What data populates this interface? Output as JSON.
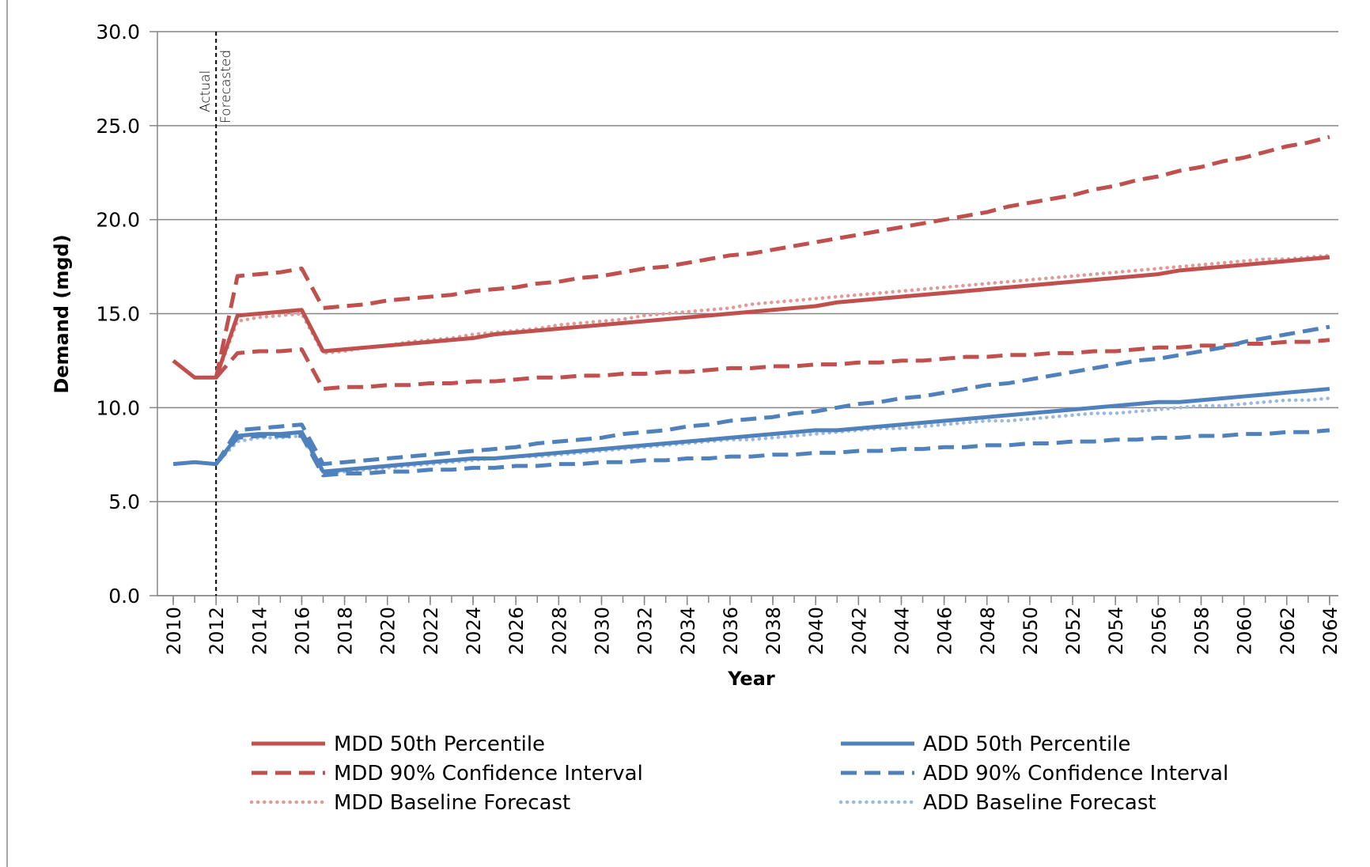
{
  "chart_data": {
    "type": "line",
    "xlabel": "Year",
    "ylabel": "Demand (mgd)",
    "x": [
      2010,
      2011,
      2012,
      2013,
      2014,
      2015,
      2016,
      2017,
      2018,
      2019,
      2020,
      2021,
      2022,
      2023,
      2024,
      2025,
      2026,
      2027,
      2028,
      2029,
      2030,
      2031,
      2032,
      2033,
      2034,
      2035,
      2036,
      2037,
      2038,
      2039,
      2040,
      2041,
      2042,
      2043,
      2044,
      2045,
      2046,
      2047,
      2048,
      2049,
      2050,
      2051,
      2052,
      2053,
      2054,
      2055,
      2056,
      2057,
      2058,
      2059,
      2060,
      2061,
      2062,
      2063,
      2064
    ],
    "xlim": [
      2009.26,
      2064.41
    ],
    "xticks": [
      2010,
      2012,
      2014,
      2016,
      2018,
      2020,
      2022,
      2024,
      2026,
      2028,
      2030,
      2032,
      2034,
      2036,
      2038,
      2040,
      2042,
      2044,
      2046,
      2048,
      2050,
      2052,
      2054,
      2056,
      2058,
      2060,
      2062,
      2064
    ],
    "ylim": [
      0,
      30
    ],
    "yticks": [
      {
        "value": 0,
        "label": "0.0"
      },
      {
        "value": 5,
        "label": "5.0"
      },
      {
        "value": 10,
        "label": "10.0"
      },
      {
        "value": 15,
        "label": "15.0"
      },
      {
        "value": 20,
        "label": "20.0"
      },
      {
        "value": 25,
        "label": "25.0"
      },
      {
        "value": 30,
        "label": "30.0"
      }
    ],
    "grid": true,
    "legend": "bottom",
    "divider": {
      "x": 2012,
      "left_label": "Actual",
      "right_label": "Forecasted"
    },
    "series": [
      {
        "name": "MDD 50th Percentile",
        "color": "#c0504d",
        "style": "solid",
        "values": [
          12.5,
          11.6,
          11.6,
          14.9,
          15.0,
          15.1,
          15.2,
          13.0,
          13.1,
          13.2,
          13.3,
          13.4,
          13.5,
          13.6,
          13.7,
          13.9,
          14.0,
          14.1,
          14.2,
          14.3,
          14.4,
          14.5,
          14.6,
          14.7,
          14.8,
          14.9,
          15.0,
          15.1,
          15.2,
          15.3,
          15.4,
          15.6,
          15.7,
          15.8,
          15.9,
          16.0,
          16.1,
          16.2,
          16.3,
          16.4,
          16.5,
          16.6,
          16.7,
          16.8,
          16.9,
          17.0,
          17.1,
          17.3,
          17.4,
          17.5,
          17.6,
          17.7,
          17.8,
          17.9,
          18.0
        ]
      },
      {
        "name": "MDD 90% Confidence Interval",
        "color": "#c0504d",
        "style": "dash",
        "values": [
          null,
          null,
          11.6,
          17.0,
          17.1,
          17.2,
          17.4,
          15.3,
          15.4,
          15.5,
          15.7,
          15.8,
          15.9,
          16.0,
          16.2,
          16.3,
          16.4,
          16.6,
          16.7,
          16.9,
          17.0,
          17.2,
          17.4,
          17.5,
          17.7,
          17.9,
          18.1,
          18.2,
          18.4,
          18.6,
          18.8,
          19.0,
          19.2,
          19.4,
          19.6,
          19.8,
          20.0,
          20.2,
          20.4,
          20.7,
          20.9,
          21.1,
          21.3,
          21.6,
          21.8,
          22.1,
          22.3,
          22.6,
          22.8,
          23.1,
          23.3,
          23.6,
          23.9,
          24.1,
          24.4
        ],
        "lower": [
          null,
          null,
          11.6,
          12.9,
          13.0,
          13.0,
          13.1,
          11.0,
          11.1,
          11.1,
          11.2,
          11.2,
          11.3,
          11.3,
          11.4,
          11.4,
          11.5,
          11.6,
          11.6,
          11.7,
          11.7,
          11.8,
          11.8,
          11.9,
          11.9,
          12.0,
          12.1,
          12.1,
          12.2,
          12.2,
          12.3,
          12.3,
          12.4,
          12.4,
          12.5,
          12.5,
          12.6,
          12.7,
          12.7,
          12.8,
          12.8,
          12.9,
          12.9,
          13.0,
          13.0,
          13.1,
          13.2,
          13.2,
          13.3,
          13.3,
          13.4,
          13.4,
          13.5,
          13.5,
          13.6
        ]
      },
      {
        "name": "MDD Baseline Forecast",
        "color": "#e09a98",
        "style": "dot",
        "values": [
          null,
          null,
          11.6,
          14.6,
          14.8,
          14.9,
          15.0,
          12.9,
          13.0,
          13.2,
          13.3,
          13.5,
          13.6,
          13.7,
          13.9,
          14.0,
          14.1,
          14.2,
          14.4,
          14.5,
          14.6,
          14.7,
          14.9,
          15.0,
          15.1,
          15.2,
          15.3,
          15.5,
          15.6,
          15.7,
          15.8,
          15.9,
          16.0,
          16.1,
          16.2,
          16.3,
          16.4,
          16.5,
          16.6,
          16.7,
          16.8,
          16.9,
          17.0,
          17.1,
          17.2,
          17.3,
          17.4,
          17.5,
          17.6,
          17.7,
          17.8,
          17.9,
          17.9,
          18.0,
          18.1
        ]
      },
      {
        "name": "ADD 50th Percentile",
        "color": "#4f81bd",
        "style": "solid",
        "values": [
          7.0,
          7.1,
          7.0,
          8.5,
          8.6,
          8.6,
          8.7,
          6.6,
          6.7,
          6.8,
          6.9,
          7.0,
          7.1,
          7.2,
          7.3,
          7.3,
          7.4,
          7.5,
          7.6,
          7.7,
          7.8,
          7.9,
          8.0,
          8.1,
          8.2,
          8.3,
          8.4,
          8.5,
          8.6,
          8.7,
          8.8,
          8.8,
          8.9,
          9.0,
          9.1,
          9.2,
          9.3,
          9.4,
          9.5,
          9.6,
          9.7,
          9.8,
          9.9,
          10.0,
          10.1,
          10.2,
          10.3,
          10.3,
          10.4,
          10.5,
          10.6,
          10.7,
          10.8,
          10.9,
          11.0
        ]
      },
      {
        "name": "ADD 90% Confidence Interval",
        "color": "#4f81bd",
        "style": "dash",
        "values": [
          null,
          null,
          7.0,
          8.8,
          8.9,
          9.0,
          9.1,
          7.0,
          7.1,
          7.2,
          7.3,
          7.4,
          7.5,
          7.6,
          7.7,
          7.8,
          7.9,
          8.1,
          8.2,
          8.3,
          8.4,
          8.6,
          8.7,
          8.8,
          9.0,
          9.1,
          9.3,
          9.4,
          9.5,
          9.7,
          9.8,
          10.0,
          10.2,
          10.3,
          10.5,
          10.6,
          10.8,
          11.0,
          11.2,
          11.3,
          11.5,
          11.7,
          11.9,
          12.1,
          12.3,
          12.5,
          12.6,
          12.8,
          13.0,
          13.2,
          13.5,
          13.7,
          13.9,
          14.1,
          14.3
        ],
        "lower": [
          null,
          null,
          7.0,
          8.4,
          8.5,
          8.5,
          8.5,
          6.4,
          6.5,
          6.5,
          6.6,
          6.6,
          6.7,
          6.7,
          6.8,
          6.8,
          6.9,
          6.9,
          7.0,
          7.0,
          7.1,
          7.1,
          7.2,
          7.2,
          7.3,
          7.3,
          7.4,
          7.4,
          7.5,
          7.5,
          7.6,
          7.6,
          7.7,
          7.7,
          7.8,
          7.8,
          7.9,
          7.9,
          8.0,
          8.0,
          8.1,
          8.1,
          8.2,
          8.2,
          8.3,
          8.3,
          8.4,
          8.4,
          8.5,
          8.5,
          8.6,
          8.6,
          8.7,
          8.7,
          8.8
        ]
      },
      {
        "name": "ADD Baseline Forecast",
        "color": "#9bb9dc",
        "style": "dot",
        "values": [
          null,
          null,
          7.0,
          8.2,
          8.4,
          8.4,
          8.5,
          6.5,
          6.6,
          6.7,
          6.8,
          6.9,
          7.0,
          7.1,
          7.2,
          7.3,
          7.4,
          7.4,
          7.5,
          7.6,
          7.7,
          7.8,
          7.9,
          8.0,
          8.1,
          8.2,
          8.3,
          8.3,
          8.4,
          8.5,
          8.6,
          8.7,
          8.8,
          8.9,
          8.9,
          9.0,
          9.1,
          9.2,
          9.3,
          9.3,
          9.4,
          9.5,
          9.6,
          9.7,
          9.7,
          9.8,
          9.9,
          10.0,
          10.1,
          10.1,
          10.2,
          10.3,
          10.4,
          10.4,
          10.5
        ]
      }
    ]
  }
}
